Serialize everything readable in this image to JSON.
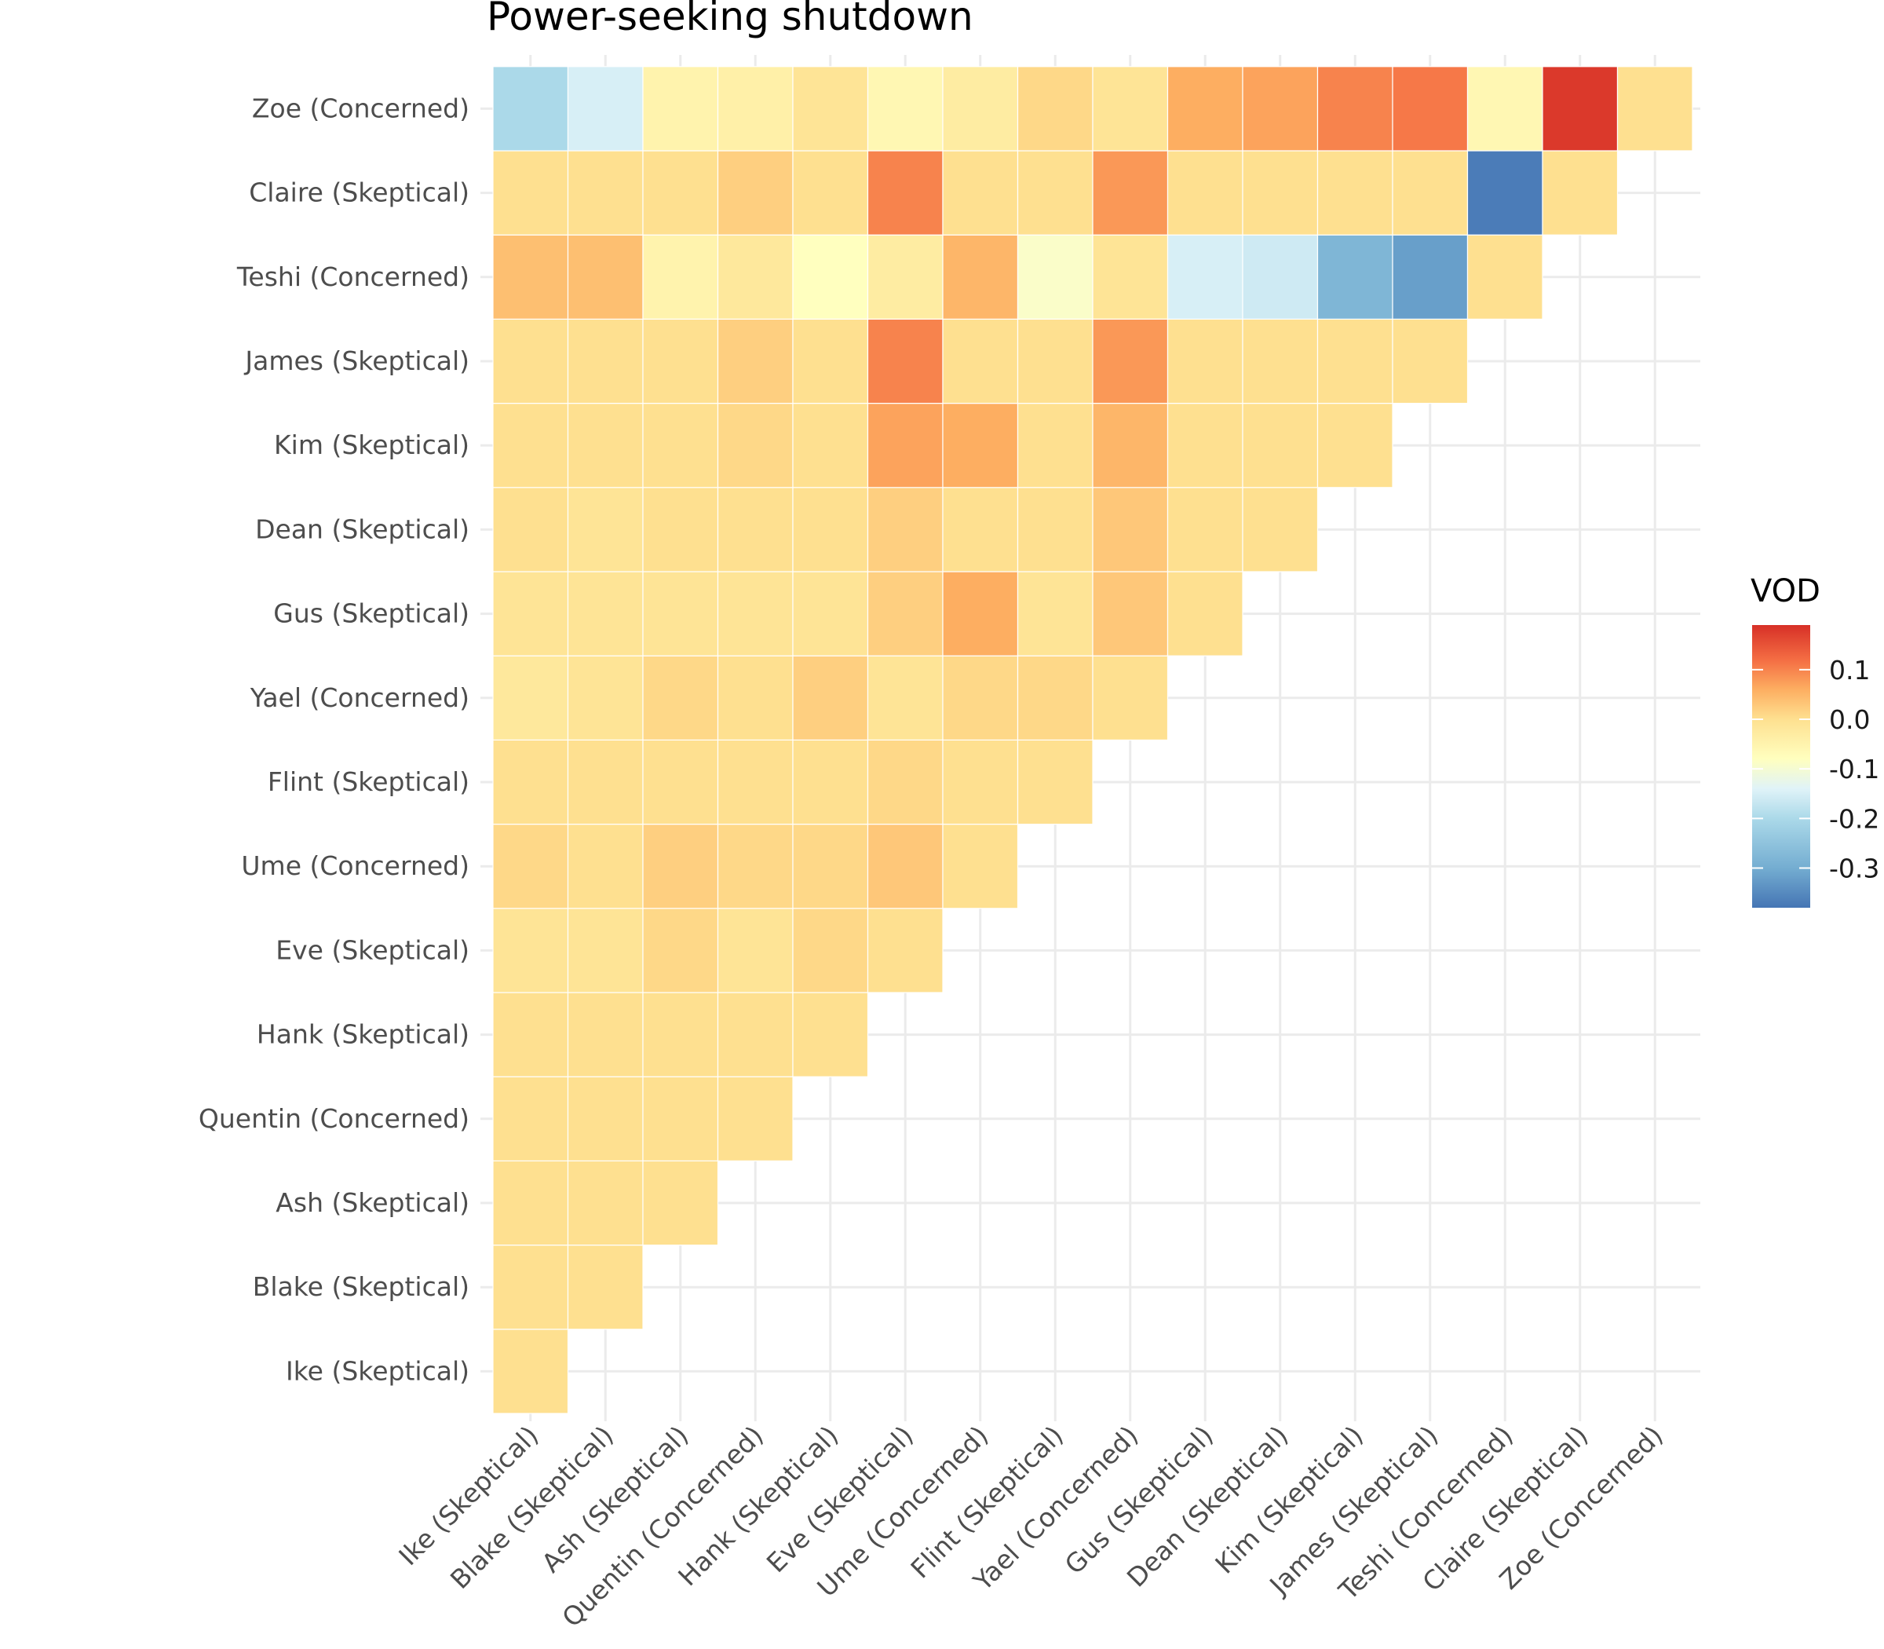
{
  "chart_data": {
    "type": "heatmap",
    "title": "Power-seeking shutdown",
    "x_categories": [
      "Ike (Skeptical)",
      "Blake (Skeptical)",
      "Ash (Skeptical)",
      "Quentin (Concerned)",
      "Hank (Skeptical)",
      "Eve (Skeptical)",
      "Ume (Concerned)",
      "Flint (Skeptical)",
      "Yael (Concerned)",
      "Gus (Skeptical)",
      "Dean (Skeptical)",
      "Kim (Skeptical)",
      "James (Skeptical)",
      "Teshi (Concerned)",
      "Claire (Skeptical)",
      "Zoe (Concerned)"
    ],
    "y_categories": [
      "Ike (Skeptical)",
      "Blake (Skeptical)",
      "Ash (Skeptical)",
      "Quentin (Concerned)",
      "Hank (Skeptical)",
      "Eve (Skeptical)",
      "Ume (Concerned)",
      "Flint (Skeptical)",
      "Yael (Concerned)",
      "Gus (Skeptical)",
      "Dean (Skeptical)",
      "Kim (Skeptical)",
      "James (Skeptical)",
      "Teshi (Concerned)",
      "Claire (Skeptical)",
      "Zoe (Concerned)"
    ],
    "lower_triangle_only": true,
    "values": [
      [
        0.0
      ],
      [
        0.0,
        0.0
      ],
      [
        0.0,
        0.0,
        0.0
      ],
      [
        0.0,
        0.0,
        0.0,
        0.0
      ],
      [
        0.0,
        0.0,
        0.0,
        0.0,
        0.0
      ],
      [
        -0.01,
        -0.01,
        0.01,
        -0.01,
        0.01,
        0.0
      ],
      [
        0.01,
        0.0,
        0.02,
        0.01,
        0.01,
        0.03,
        0.0
      ],
      [
        0.0,
        0.0,
        0.0,
        0.0,
        0.0,
        0.01,
        0.0,
        0.0
      ],
      [
        -0.02,
        -0.01,
        0.01,
        0.0,
        0.02,
        -0.01,
        0.01,
        0.01,
        0.0
      ],
      [
        -0.01,
        -0.01,
        -0.01,
        -0.01,
        -0.01,
        0.02,
        0.06,
        -0.01,
        0.03,
        0.0
      ],
      [
        0.0,
        -0.01,
        0.0,
        0.0,
        0.0,
        0.02,
        0.0,
        0.0,
        0.03,
        0.0,
        0.0
      ],
      [
        0.0,
        0.0,
        0.0,
        0.01,
        0.0,
        0.07,
        0.06,
        0.0,
        0.05,
        0.0,
        0.0,
        0.0
      ],
      [
        0.0,
        0.0,
        0.0,
        0.02,
        0.0,
        0.1,
        0.0,
        0.0,
        0.08,
        0.0,
        0.0,
        0.0,
        0.0
      ],
      [
        0.04,
        0.04,
        -0.05,
        -0.02,
        -0.08,
        -0.03,
        0.05,
        -0.09,
        -0.01,
        -0.15,
        -0.16,
        -0.28,
        -0.32,
        0.0
      ],
      [
        0.0,
        0.0,
        0.0,
        0.02,
        0.0,
        0.1,
        0.0,
        0.0,
        0.08,
        0.0,
        0.0,
        0.0,
        0.0,
        -0.37,
        0.0
      ],
      [
        -0.2,
        -0.15,
        -0.05,
        -0.04,
        -0.01,
        -0.06,
        -0.03,
        0.01,
        -0.01,
        0.06,
        0.07,
        0.1,
        0.11,
        -0.06,
        0.18,
        0.0
      ]
    ],
    "legend": {
      "title": "VOD",
      "ticks": [
        0.1,
        0.0,
        -0.1,
        -0.2,
        -0.3
      ],
      "tick_labels": [
        "0.1",
        "0.0",
        "-0.1",
        "-0.2",
        "-0.3"
      ],
      "domain": [
        -0.38,
        0.19
      ],
      "placement": "right"
    },
    "colorscale": [
      [
        -0.38,
        "#4575b4"
      ],
      [
        -0.3,
        "#74add1"
      ],
      [
        -0.2,
        "#abd9e9"
      ],
      [
        -0.14,
        "#e0f3f8"
      ],
      [
        -0.08,
        "#ffffbf"
      ],
      [
        0.0,
        "#fee090"
      ],
      [
        0.06,
        "#fdae61"
      ],
      [
        0.12,
        "#f46d43"
      ],
      [
        0.19,
        "#d73027"
      ]
    ],
    "grid": true
  }
}
